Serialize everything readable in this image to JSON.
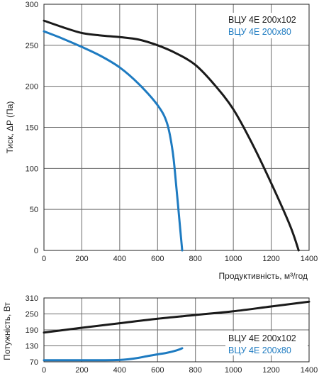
{
  "chart_data": [
    {
      "type": "line",
      "xlabel": "Продуктивність, м³/год",
      "ylabel": "Тиск, ΔP (Па)",
      "xlim": [
        0,
        1400
      ],
      "ylim": [
        0,
        300
      ],
      "x_ticks": [
        0,
        200,
        400,
        600,
        800,
        1000,
        1200,
        1400
      ],
      "y_ticks": [
        0,
        50,
        100,
        150,
        200,
        250,
        300
      ],
      "grid": true,
      "legend_position": "top-right",
      "series": [
        {
          "name": "ВЦУ 4Е 200x102",
          "color": "#1a1a1a",
          "x": [
            0,
            100,
            200,
            300,
            400,
            500,
            600,
            700,
            800,
            900,
            1000,
            1100,
            1200,
            1300,
            1345
          ],
          "y": [
            280,
            272,
            265,
            262,
            260,
            257,
            250,
            240,
            226,
            202,
            172,
            130,
            82,
            30,
            0
          ]
        },
        {
          "name": "ВЦУ 4Е 200x80",
          "color": "#1e7bc1",
          "x": [
            0,
            100,
            200,
            300,
            400,
            500,
            600,
            650,
            680,
            700,
            720,
            730
          ],
          "y": [
            267,
            258,
            248,
            237,
            223,
            203,
            177,
            155,
            120,
            75,
            25,
            0
          ]
        }
      ]
    },
    {
      "type": "line",
      "xlabel": "",
      "ylabel": "Потужність, Вт",
      "xlim": [
        0,
        1400
      ],
      "ylim": [
        70,
        310
      ],
      "x_ticks": [
        0,
        200,
        400,
        600,
        800,
        1000,
        1200,
        1400
      ],
      "y_ticks": [
        70,
        130,
        190,
        250,
        310
      ],
      "y_tick_labels": [
        "70",
        "130",
        "190",
        "250",
        "310"
      ],
      "grid": true,
      "legend_position": "bottom-right",
      "series": [
        {
          "name": "ВЦУ 4Е 200x102",
          "color": "#1a1a1a",
          "x": [
            0,
            200,
            400,
            600,
            800,
            1000,
            1200,
            1400
          ],
          "y": [
            180,
            198,
            215,
            232,
            246,
            260,
            278,
            296
          ]
        },
        {
          "name": "ВЦУ 4Е 200x80",
          "color": "#1e7bc1",
          "x": [
            0,
            200,
            300,
            400,
            450,
            500,
            550,
            600,
            650,
            700,
            730
          ],
          "y": [
            76,
            76,
            76,
            77,
            80,
            85,
            92,
            98,
            104,
            113,
            121
          ]
        }
      ]
    }
  ]
}
